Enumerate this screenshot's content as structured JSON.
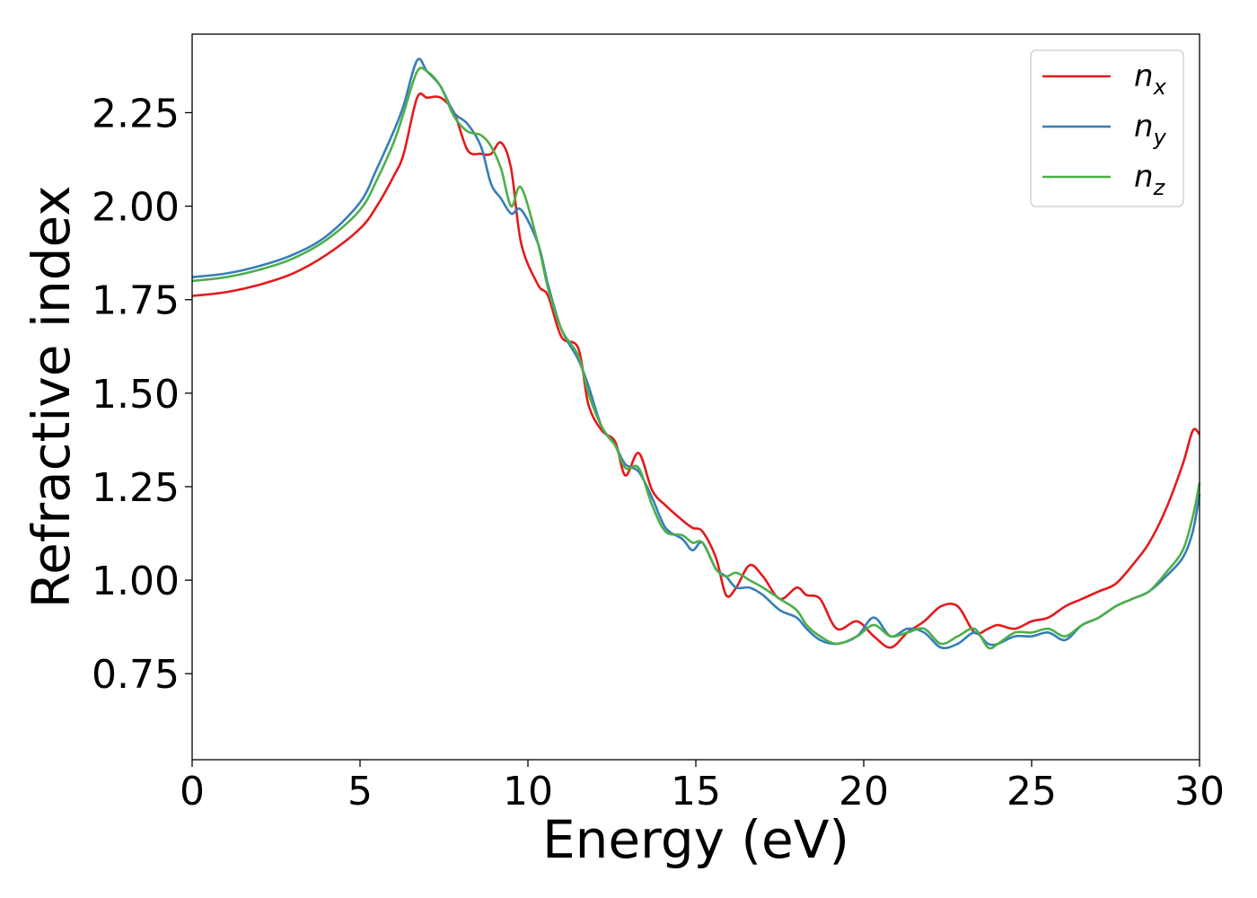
{
  "chart_data": {
    "type": "line",
    "xlabel": "Energy (eV)",
    "ylabel": "Refractive index",
    "xlim": [
      0,
      30
    ],
    "ylim": [
      0.52,
      2.46
    ],
    "xticks": [
      0,
      5,
      10,
      15,
      20,
      25,
      30
    ],
    "xtick_labels": [
      "0",
      "5",
      "10",
      "15",
      "20",
      "25",
      "30"
    ],
    "yticks": [
      0.75,
      1.0,
      1.25,
      1.5,
      1.75,
      2.0,
      2.25
    ],
    "ytick_labels": [
      "0.75",
      "1.00",
      "1.25",
      "1.50",
      "1.75",
      "2.00",
      "2.25"
    ],
    "grid": false,
    "legend_position": "top-right",
    "series": [
      {
        "name": "n",
        "subscript": "x",
        "color": "#e41a1c",
        "x": [
          0,
          1,
          2,
          3,
          4,
          5,
          5.5,
          6,
          6.3,
          6.7,
          7,
          7.4,
          7.8,
          8.2,
          8.6,
          8.9,
          9.2,
          9.5,
          9.8,
          10.3,
          10.6,
          11,
          11.5,
          11.8,
          12.2,
          12.6,
          12.9,
          13.3,
          13.7,
          14.1,
          14.6,
          14.9,
          15.2,
          15.6,
          15.9,
          16.2,
          16.6,
          17.0,
          17.5,
          18.0,
          18.3,
          18.7,
          19.2,
          19.8,
          20.3,
          20.8,
          21.3,
          21.8,
          22.3,
          22.8,
          23.3,
          23.7,
          24.0,
          24.5,
          25.0,
          25.5,
          26.0,
          26.5,
          27.0,
          27.5,
          28.0,
          28.5,
          29.0,
          29.5,
          29.8,
          30.0
        ],
        "y": [
          1.76,
          1.77,
          1.79,
          1.82,
          1.87,
          1.94,
          2.0,
          2.08,
          2.14,
          2.29,
          2.29,
          2.29,
          2.25,
          2.15,
          2.14,
          2.14,
          2.17,
          2.1,
          1.9,
          1.79,
          1.76,
          1.65,
          1.62,
          1.47,
          1.4,
          1.37,
          1.28,
          1.34,
          1.24,
          1.2,
          1.16,
          1.14,
          1.13,
          1.06,
          0.96,
          0.98,
          1.04,
          1.01,
          0.95,
          0.98,
          0.96,
          0.95,
          0.87,
          0.89,
          0.85,
          0.82,
          0.86,
          0.89,
          0.93,
          0.93,
          0.86,
          0.87,
          0.88,
          0.87,
          0.89,
          0.9,
          0.93,
          0.95,
          0.97,
          0.99,
          1.04,
          1.1,
          1.19,
          1.31,
          1.4,
          1.39
        ]
      },
      {
        "name": "n",
        "subscript": "y",
        "color": "#377eb8",
        "x": [
          0,
          1,
          2,
          3,
          4,
          5,
          5.5,
          6,
          6.3,
          6.7,
          7,
          7.4,
          7.8,
          8.2,
          8.6,
          8.9,
          9.2,
          9.5,
          9.8,
          10.3,
          10.6,
          11,
          11.5,
          11.8,
          12.2,
          12.6,
          12.9,
          13.3,
          13.7,
          14.1,
          14.6,
          14.9,
          15.2,
          15.6,
          15.9,
          16.2,
          16.6,
          17.0,
          17.5,
          18.0,
          18.3,
          18.7,
          19.2,
          19.8,
          20.3,
          20.8,
          21.3,
          21.8,
          22.3,
          22.8,
          23.3,
          23.7,
          24.0,
          24.5,
          25.0,
          25.5,
          26.0,
          26.5,
          27.0,
          27.5,
          28.0,
          28.5,
          29.0,
          29.5,
          29.8,
          30.0
        ],
        "y": [
          1.81,
          1.82,
          1.84,
          1.87,
          1.92,
          2.01,
          2.1,
          2.2,
          2.27,
          2.39,
          2.36,
          2.32,
          2.25,
          2.22,
          2.16,
          2.06,
          2.02,
          1.98,
          1.99,
          1.9,
          1.79,
          1.67,
          1.59,
          1.52,
          1.41,
          1.36,
          1.31,
          1.29,
          1.22,
          1.14,
          1.11,
          1.08,
          1.1,
          1.03,
          1.01,
          0.98,
          0.98,
          0.96,
          0.92,
          0.9,
          0.87,
          0.84,
          0.83,
          0.85,
          0.9,
          0.85,
          0.87,
          0.86,
          0.82,
          0.83,
          0.86,
          0.83,
          0.83,
          0.85,
          0.85,
          0.86,
          0.84,
          0.88,
          0.9,
          0.93,
          0.95,
          0.97,
          1.01,
          1.06,
          1.13,
          1.23
        ]
      },
      {
        "name": "n",
        "subscript": "z",
        "color": "#4daf4a",
        "x": [
          0,
          1,
          2,
          3,
          4,
          5,
          5.5,
          6,
          6.3,
          6.7,
          7,
          7.4,
          7.8,
          8.2,
          8.6,
          8.9,
          9.2,
          9.5,
          9.8,
          10.3,
          10.6,
          11,
          11.5,
          11.8,
          12.2,
          12.6,
          12.9,
          13.3,
          13.7,
          14.1,
          14.6,
          14.9,
          15.2,
          15.6,
          15.9,
          16.2,
          16.6,
          17.0,
          17.5,
          18.0,
          18.3,
          18.7,
          19.2,
          19.8,
          20.3,
          20.8,
          21.3,
          21.8,
          22.3,
          22.8,
          23.3,
          23.7,
          24.0,
          24.5,
          25.0,
          25.5,
          26.0,
          26.5,
          27.0,
          27.5,
          28.0,
          28.5,
          29.0,
          29.5,
          29.8,
          30.0
        ],
        "y": [
          1.8,
          1.81,
          1.83,
          1.86,
          1.91,
          1.99,
          2.07,
          2.17,
          2.25,
          2.36,
          2.36,
          2.32,
          2.24,
          2.2,
          2.19,
          2.16,
          2.1,
          2.0,
          2.05,
          1.9,
          1.78,
          1.67,
          1.6,
          1.5,
          1.41,
          1.36,
          1.3,
          1.3,
          1.2,
          1.13,
          1.12,
          1.1,
          1.1,
          1.03,
          1.01,
          1.02,
          1.0,
          0.98,
          0.95,
          0.92,
          0.88,
          0.85,
          0.83,
          0.85,
          0.88,
          0.85,
          0.86,
          0.87,
          0.83,
          0.85,
          0.87,
          0.82,
          0.83,
          0.86,
          0.86,
          0.87,
          0.85,
          0.88,
          0.9,
          0.93,
          0.95,
          0.97,
          1.02,
          1.08,
          1.17,
          1.26
        ]
      }
    ]
  }
}
